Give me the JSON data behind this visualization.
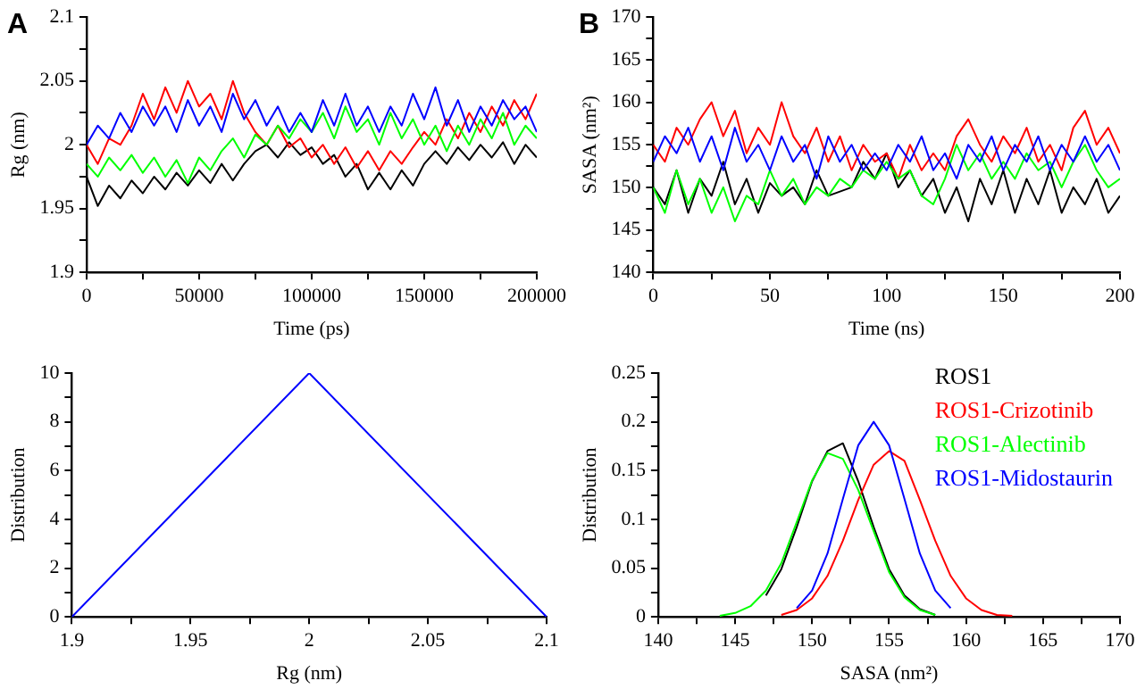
{
  "chart_data": [
    {
      "type": "line",
      "xlabel": "Time (ps)",
      "ylabel": "Rg (nm)",
      "annotations": [
        "A"
      ],
      "grid": false,
      "x": [
        0,
        5000,
        10000,
        15000,
        20000,
        25000,
        30000,
        35000,
        40000,
        45000,
        50000,
        55000,
        60000,
        65000,
        70000,
        75000,
        80000,
        85000,
        90000,
        95000,
        100000,
        105000,
        110000,
        115000,
        120000,
        125000,
        130000,
        135000,
        140000,
        145000,
        150000,
        155000,
        160000,
        165000,
        170000,
        175000,
        180000,
        185000,
        190000,
        195000,
        200000
      ],
      "xlim": [
        0,
        200000
      ],
      "xticks": [
        0,
        {
          "value": 25000,
          "label": null
        },
        50000,
        {
          "value": 75000,
          "label": null
        },
        100000,
        {
          "value": 125000,
          "label": null
        },
        150000,
        {
          "value": 175000,
          "label": null
        },
        200000
      ],
      "ylim": [
        1.9,
        2.1
      ],
      "yticks": [
        1.9,
        {
          "value": 1.925,
          "label": null
        },
        1.95,
        {
          "value": 1.975,
          "label": null
        },
        2,
        {
          "value": 2.025,
          "label": null
        },
        2.05,
        {
          "value": 2.075,
          "label": null
        },
        2.1
      ],
      "series": [
        {
          "color": "#000000",
          "values": [
            1.975,
            1.952,
            1.968,
            1.958,
            1.972,
            1.962,
            1.975,
            1.965,
            1.978,
            1.968,
            1.98,
            1.97,
            1.985,
            1.972,
            1.985,
            1.995,
            2.0,
            1.99,
            2.002,
            1.992,
            1.998,
            1.985,
            1.992,
            1.975,
            1.985,
            1.965,
            1.978,
            1.965,
            1.98,
            1.968,
            1.985,
            1.995,
            1.985,
            1.998,
            1.988,
            2.0,
            1.99,
            2.002,
            1.985,
            2.0,
            1.99
          ]
        },
        {
          "color": "#ff0000",
          "values": [
            2.0,
            1.985,
            2.005,
            2.0,
            2.015,
            2.04,
            2.02,
            2.045,
            2.025,
            2.05,
            2.03,
            2.04,
            2.02,
            2.05,
            2.025,
            2.01,
            2.0,
            2.015,
            1.998,
            2.005,
            1.99,
            2.0,
            1.985,
            1.998,
            1.982,
            1.995,
            1.98,
            1.995,
            1.985,
            1.998,
            2.01,
            2.0,
            2.02,
            2.005,
            2.025,
            2.01,
            2.03,
            2.015,
            2.035,
            2.02,
            2.04
          ]
        },
        {
          "color": "#00ff00",
          "values": [
            1.985,
            1.975,
            1.99,
            1.98,
            1.992,
            1.978,
            1.99,
            1.975,
            1.988,
            1.97,
            1.99,
            1.98,
            1.995,
            2.005,
            1.99,
            2.008,
            2.0,
            2.015,
            2.005,
            2.02,
            2.01,
            2.025,
            2.005,
            2.03,
            2.01,
            2.02,
            2.0,
            2.025,
            2.005,
            2.02,
            2.0,
            2.015,
            1.995,
            2.015,
            2.0,
            2.02,
            2.005,
            2.025,
            2.0,
            2.015,
            2.005
          ]
        },
        {
          "color": "#0000ff",
          "values": [
            2.0,
            2.015,
            2.005,
            2.025,
            2.01,
            2.03,
            2.015,
            2.03,
            2.01,
            2.035,
            2.015,
            2.03,
            2.01,
            2.04,
            2.02,
            2.035,
            2.015,
            2.03,
            2.01,
            2.025,
            2.01,
            2.035,
            2.015,
            2.04,
            2.015,
            2.03,
            2.01,
            2.03,
            2.015,
            2.04,
            2.02,
            2.045,
            2.015,
            2.035,
            2.01,
            2.03,
            2.015,
            2.035,
            2.02,
            2.03,
            2.01
          ]
        }
      ]
    },
    {
      "type": "line",
      "xlabel": "Time (ns)",
      "ylabel": "SASA (nm²)",
      "annotations": [
        "B"
      ],
      "grid": false,
      "x": [
        0,
        5,
        10,
        15,
        20,
        25,
        30,
        35,
        40,
        45,
        50,
        55,
        60,
        65,
        70,
        75,
        80,
        85,
        90,
        95,
        100,
        105,
        110,
        115,
        120,
        125,
        130,
        135,
        140,
        145,
        150,
        155,
        160,
        165,
        170,
        175,
        180,
        185,
        190,
        195,
        200
      ],
      "xlim": [
        0,
        200
      ],
      "xticks": [
        0,
        {
          "value": 25,
          "label": null
        },
        50,
        {
          "value": 75,
          "label": null
        },
        100,
        {
          "value": 125,
          "label": null
        },
        150,
        {
          "value": 175,
          "label": null
        },
        200
      ],
      "ylim": [
        140,
        170
      ],
      "yticks": [
        140,
        {
          "value": 142.5,
          "label": null
        },
        145,
        {
          "value": 147.5,
          "label": null
        },
        150,
        {
          "value": 152.5,
          "label": null
        },
        155,
        {
          "value": 157.5,
          "label": null
        },
        160,
        {
          "value": 162.5,
          "label": null
        },
        165,
        {
          "value": 167.5,
          "label": null
        },
        170
      ],
      "series": [
        {
          "color": "#000000",
          "values": [
            150,
            148,
            152,
            147,
            151,
            149,
            153,
            148,
            151,
            147,
            150.5,
            149,
            150,
            148,
            152,
            149,
            149.5,
            150,
            153,
            151,
            154,
            150,
            152,
            149,
            151,
            147,
            150,
            146,
            151,
            148,
            152,
            147,
            151,
            148,
            152,
            147,
            150,
            148,
            151,
            147,
            149
          ]
        },
        {
          "color": "#ff0000",
          "values": [
            155,
            153,
            157,
            155,
            158,
            160,
            156,
            159,
            154,
            157,
            155,
            160,
            156,
            154,
            157,
            153,
            156,
            152,
            155,
            153,
            154,
            151,
            155,
            152,
            154,
            152,
            156,
            158,
            155,
            153,
            156,
            154,
            157,
            153,
            155,
            152,
            157,
            159,
            155,
            157,
            154
          ]
        },
        {
          "color": "#00ff00",
          "values": [
            150,
            147,
            152,
            148,
            151,
            147,
            150,
            146,
            149,
            148,
            152,
            149,
            151,
            148,
            150,
            149,
            151,
            150,
            152,
            151,
            153,
            151,
            152,
            149,
            148,
            151,
            155,
            152,
            154,
            151,
            153,
            151,
            154,
            152,
            153,
            150,
            153,
            155,
            152,
            150,
            151
          ]
        },
        {
          "color": "#0000ff",
          "values": [
            153,
            156,
            154,
            157,
            153,
            156,
            152,
            157,
            153,
            155,
            152,
            156,
            153,
            155,
            151,
            156,
            153,
            155,
            152,
            154,
            152,
            155,
            153,
            156,
            152,
            154,
            151,
            155,
            153,
            156,
            152,
            155,
            153,
            156,
            152,
            155,
            153,
            156,
            153,
            155,
            152
          ]
        }
      ]
    },
    {
      "type": "line",
      "xlabel": "Rg (nm)",
      "ylabel": "Distribution",
      "grid": false,
      "x": [
        1.9,
        2,
        2.1
      ],
      "xlim": [
        1.9,
        2.1
      ],
      "xticks": [
        1.9,
        {
          "value": 1.925,
          "label": null
        },
        1.95,
        {
          "value": 1.975,
          "label": null
        },
        2,
        {
          "value": 2.025,
          "label": null
        },
        2.05,
        {
          "value": 2.075,
          "label": null
        },
        2.1
      ],
      "ylim": [
        0,
        10
      ],
      "yticks": [
        0,
        {
          "value": 1,
          "label": null
        },
        2,
        {
          "value": 3,
          "label": null
        },
        4,
        {
          "value": 5,
          "label": null
        },
        6,
        {
          "value": 7,
          "label": null
        },
        8,
        {
          "value": 9,
          "label": null
        },
        10
      ],
      "series": [
        {
          "color": "#0000ff",
          "values": [
            0,
            10,
            0
          ]
        }
      ]
    },
    {
      "type": "line",
      "xlabel": "SASA (nm²)",
      "ylabel": "Distribution",
      "grid": false,
      "legend": "top right",
      "xlim": [
        140,
        170
      ],
      "xticks": [
        140,
        {
          "value": 142.5,
          "label": null
        },
        145,
        {
          "value": 147.5,
          "label": null
        },
        150,
        {
          "value": 152.5,
          "label": null
        },
        155,
        {
          "value": 157.5,
          "label": null
        },
        160,
        {
          "value": 162.5,
          "label": null
        },
        165,
        {
          "value": 167.5,
          "label": null
        },
        170
      ],
      "ylim": [
        0,
        0.25
      ],
      "yticks": [
        0,
        {
          "value": 0.025,
          "label": null
        },
        0.05,
        {
          "value": 0.075,
          "label": null
        },
        0.1,
        {
          "value": 0.125,
          "label": null
        },
        0.15,
        {
          "value": 0.175,
          "label": null
        },
        0.2,
        {
          "value": 0.225,
          "label": null
        },
        0.25
      ],
      "series": [
        {
          "name": "ROS1",
          "color": "#000000",
          "x": [
            147,
            148,
            149,
            150,
            151,
            152,
            153,
            154,
            155,
            156,
            157,
            158
          ],
          "values": [
            0.022,
            0.049,
            0.092,
            0.139,
            0.17,
            0.178,
            0.139,
            0.092,
            0.049,
            0.022,
            0.008,
            0.002
          ]
        },
        {
          "name": "ROS1-Crizotinib",
          "color": "#ff0000",
          "x": [
            148,
            149,
            150,
            151,
            152,
            153,
            154,
            155,
            156,
            157,
            158,
            159,
            160,
            161,
            162,
            163
          ],
          "values": [
            0.002,
            0.007,
            0.019,
            0.042,
            0.078,
            0.12,
            0.156,
            0.17,
            0.16,
            0.12,
            0.078,
            0.042,
            0.019,
            0.007,
            0.002,
            0.001
          ]
        },
        {
          "name": "ROS1-Alectinib",
          "color": "#00ff00",
          "x": [
            144,
            145,
            146,
            147,
            148,
            149,
            150,
            151,
            152,
            153,
            154,
            155,
            156,
            157,
            158
          ],
          "values": [
            0.001,
            0.004,
            0.011,
            0.027,
            0.055,
            0.097,
            0.14,
            0.168,
            0.162,
            0.13,
            0.088,
            0.046,
            0.02,
            0.007,
            0.002
          ]
        },
        {
          "name": "ROS1-Midostaurin",
          "color": "#0000ff",
          "x": [
            149,
            150,
            151,
            152,
            153,
            154,
            155,
            156,
            157,
            158,
            159
          ],
          "values": [
            0.009,
            0.027,
            0.065,
            0.121,
            0.176,
            0.2,
            0.176,
            0.121,
            0.065,
            0.027,
            0.009
          ]
        }
      ]
    }
  ]
}
